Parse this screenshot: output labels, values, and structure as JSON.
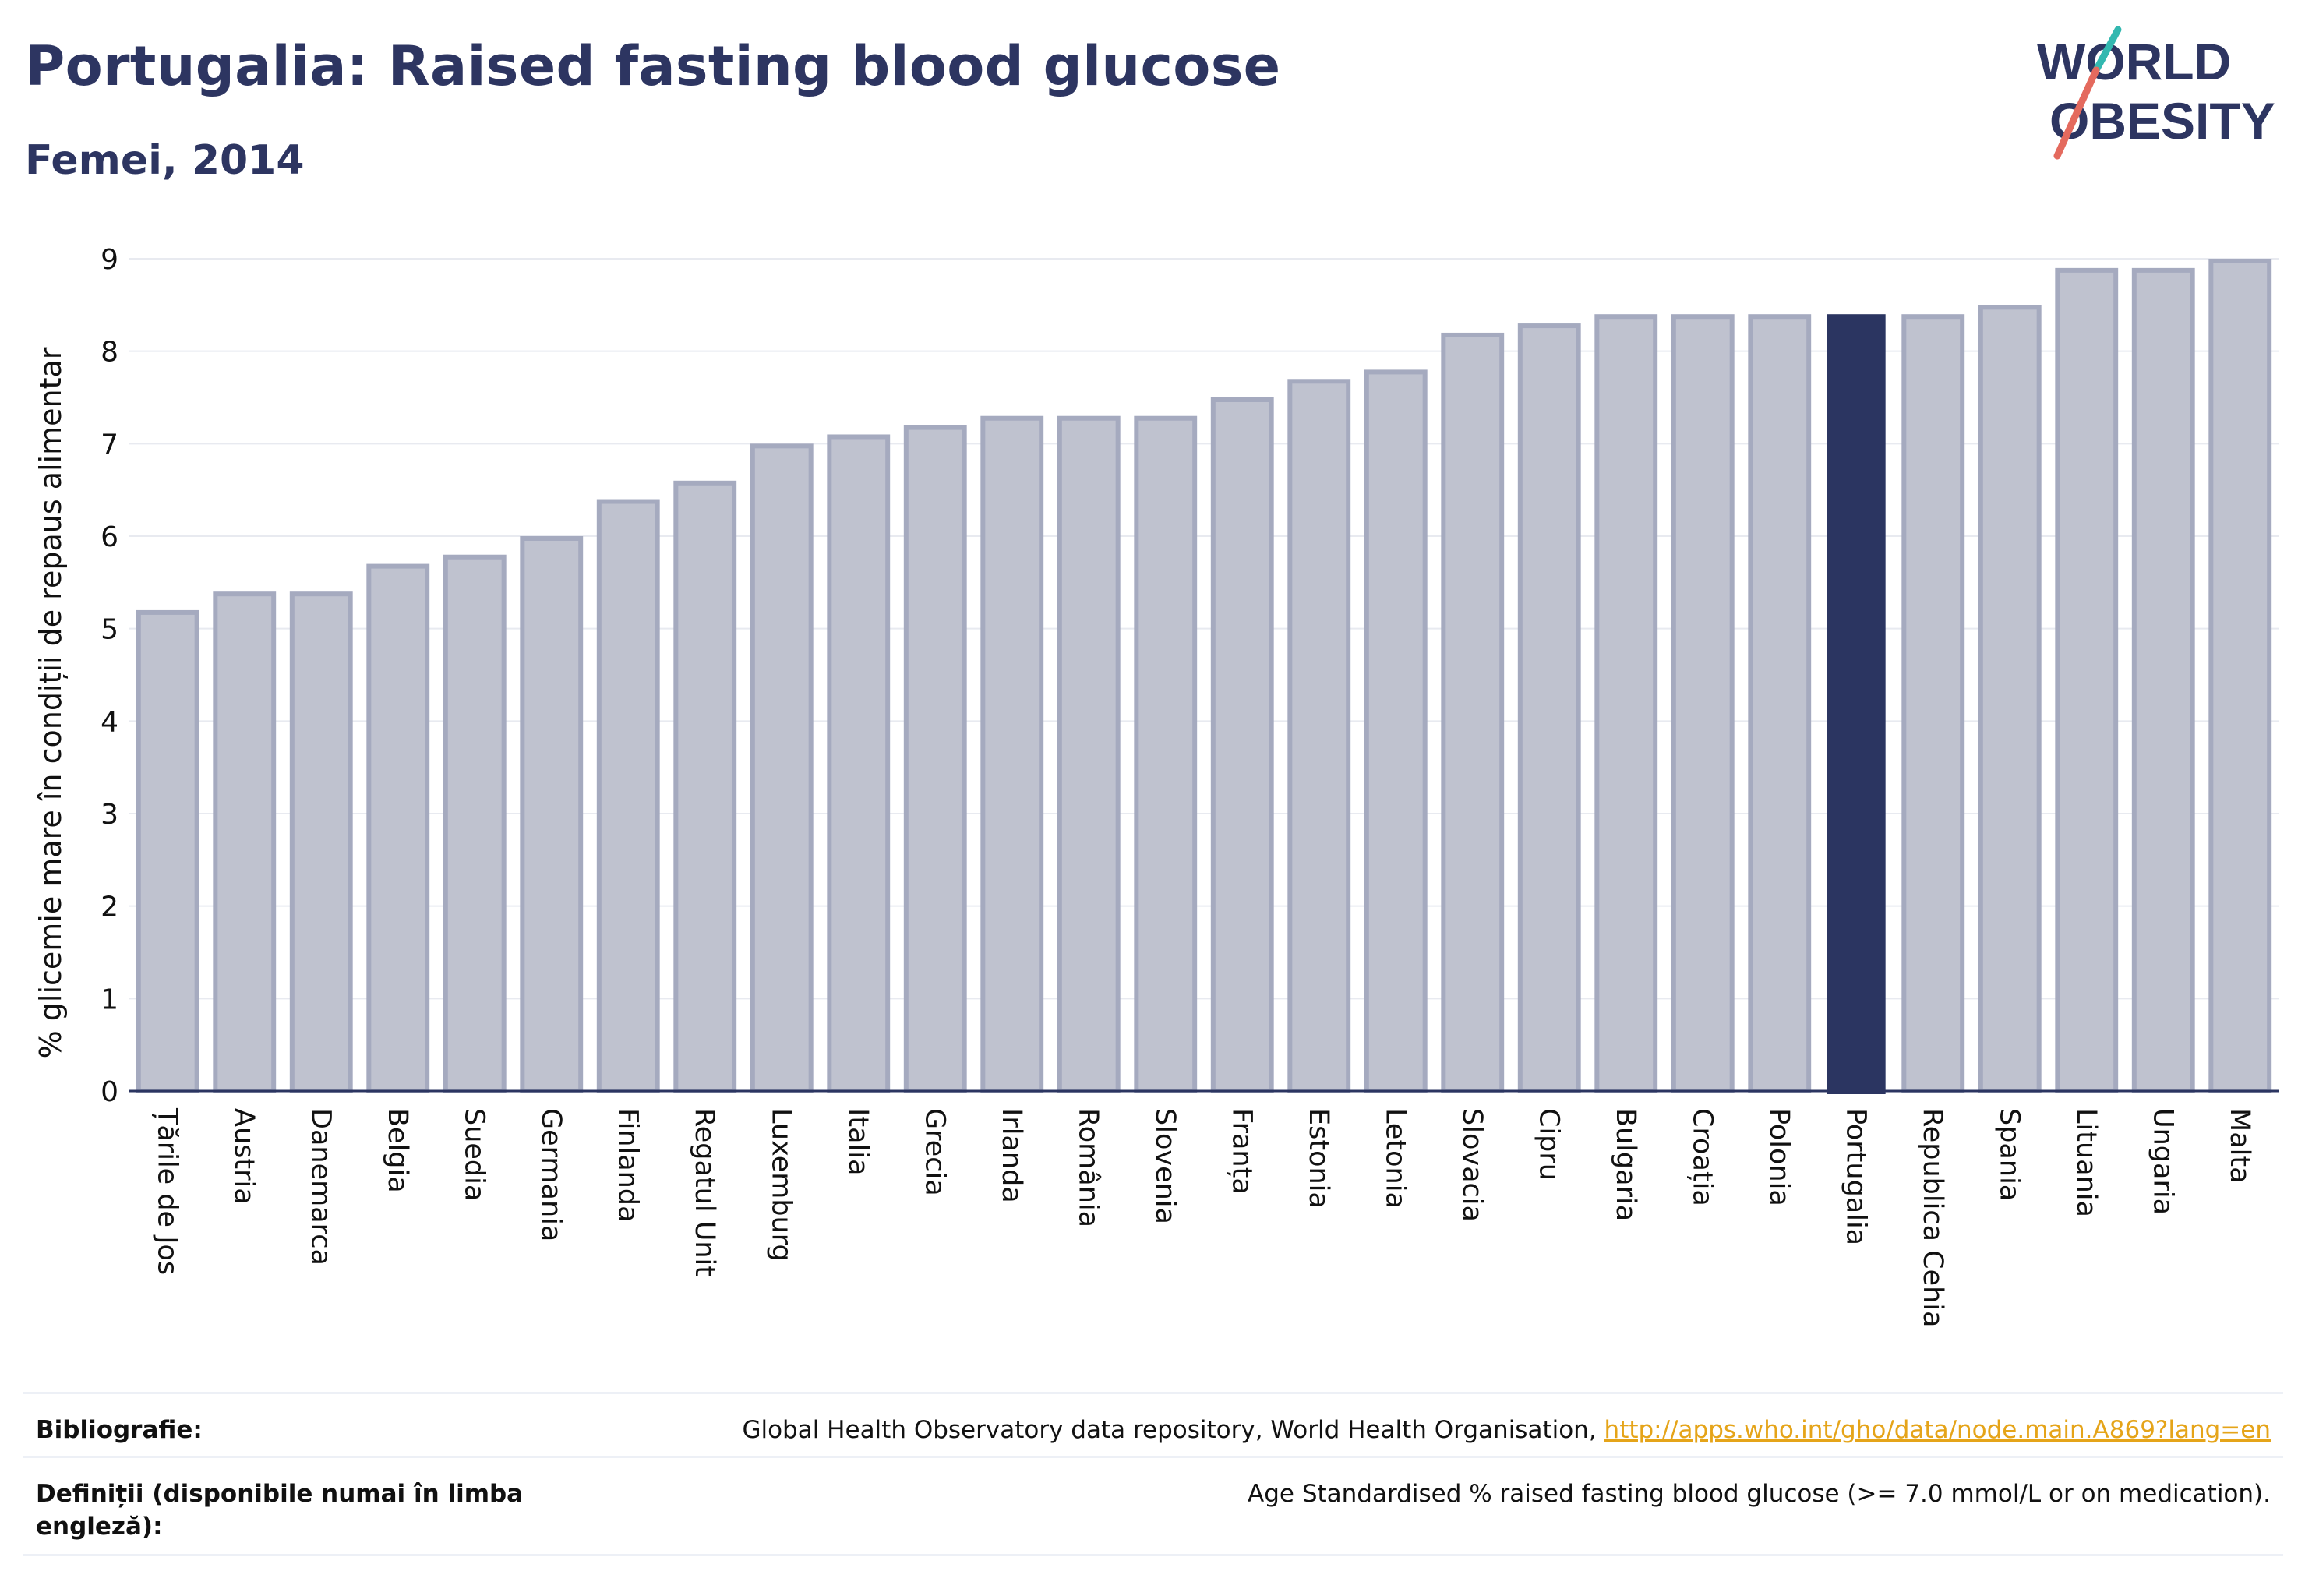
{
  "header": {
    "title": "Portugalia: Raised fasting blood glucose",
    "subtitle": "Femei, 2014"
  },
  "logo": {
    "line1": "WORLD",
    "line2": "OBESITY"
  },
  "chart_data": {
    "type": "bar",
    "categories": [
      "Țările de Jos",
      "Austria",
      "Danemarca",
      "Belgia",
      "Suedia",
      "Germania",
      "Finlanda",
      "Regatul Unit",
      "Luxemburg",
      "Italia",
      "Grecia",
      "Irlanda",
      "România",
      "Slovenia",
      "Franța",
      "Estonia",
      "Letonia",
      "Slovacia",
      "Cipru",
      "Bulgaria",
      "Croația",
      "Polonia",
      "Portugalia",
      "Republica Cehia",
      "Spania",
      "Lituania",
      "Ungaria",
      "Malta"
    ],
    "values": [
      5.2,
      5.4,
      5.4,
      5.7,
      5.8,
      6.0,
      6.4,
      6.6,
      7.0,
      7.1,
      7.2,
      7.3,
      7.3,
      7.3,
      7.5,
      7.7,
      7.8,
      8.2,
      8.3,
      8.4,
      8.4,
      8.4,
      8.4,
      8.4,
      8.5,
      8.9,
      8.9,
      9.0
    ],
    "highlight": "Portugalia",
    "ylabel": "% glicemie mare în condiții de repaus alimentar",
    "ylim": [
      0,
      9
    ],
    "yticks": [
      0,
      1,
      2,
      3,
      4,
      5,
      6,
      7,
      8,
      9
    ],
    "grid": true,
    "colors": {
      "bar": "#bfc2cf",
      "bar_border": "#a5aabf",
      "highlight": "#2b3561",
      "axis": "#2b3561",
      "grid": "#e8eaf0"
    }
  },
  "footer": {
    "bibliography_label": "Bibliografie:",
    "bibliography_text": "Global Health Observatory data repository, World Health Organisation, ",
    "bibliography_link": "http://apps.who.int/gho/data/node.main.A869?lang=en",
    "definitions_label": "Definiții (disponibile numai în limba engleză):",
    "definitions_text": "Age Standardised % raised fasting blood glucose (>= 7.0 mmol/L or on medication)."
  }
}
